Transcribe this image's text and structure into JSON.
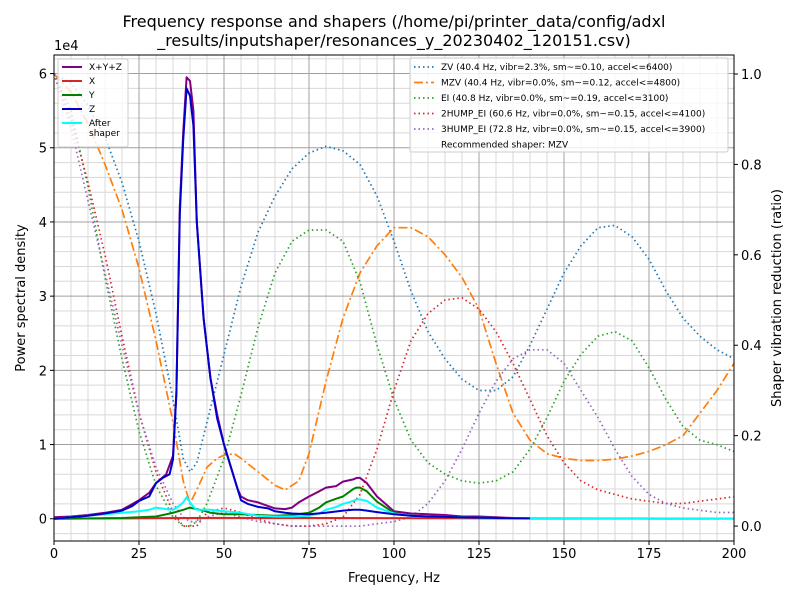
{
  "chart_data": {
    "type": "line",
    "title_line1": "Frequency response and shapers (/home/pi/printer_data/config/adxl",
    "title_line2": "_results/inputshaper/resonances_y_20230402_120151.csv)",
    "xlabel": "Frequency, Hz",
    "ylabel": "Power spectral density",
    "y2label": "Shaper vibration reduction (ratio)",
    "y_offset_label": "1e4",
    "xlim": [
      0,
      200
    ],
    "ylim": [
      -3000,
      62500
    ],
    "y2lim": [
      -0.033,
      1.042
    ],
    "x_ticks": [
      0,
      25,
      50,
      75,
      100,
      125,
      150,
      175,
      200
    ],
    "y_ticks": [
      0,
      10000,
      20000,
      30000,
      40000,
      50000,
      60000
    ],
    "y_tick_labels": [
      "0",
      "1",
      "2",
      "3",
      "4",
      "5",
      "6"
    ],
    "y2_ticks": [
      0,
      0.2,
      0.4,
      0.6,
      0.8,
      1.0
    ],
    "y2_tick_labels": [
      "0.0",
      "0.2",
      "0.4",
      "0.6",
      "0.8",
      "1.0"
    ],
    "grid": true,
    "minor_grid": true,
    "legend_left_position": "top-left",
    "legend_right_position": "top-right",
    "psd_series": [
      {
        "name": "X+Y+Z",
        "color": "#800080",
        "style": "solid",
        "width": 2,
        "x": [
          0,
          5,
          10,
          15,
          20,
          25,
          28,
          30,
          33,
          35,
          36,
          37,
          38,
          39,
          40,
          41,
          42,
          44,
          46,
          48,
          50,
          52,
          54,
          55,
          57,
          60,
          63,
          65,
          68,
          70,
          72,
          75,
          78,
          80,
          83,
          85,
          88,
          89,
          90,
          92,
          95,
          100,
          105,
          110,
          115,
          120,
          125,
          130,
          135
        ],
        "y": [
          200,
          300,
          500,
          800,
          1200,
          2500,
          3500,
          4800,
          6000,
          8500,
          17000,
          42000,
          52000,
          59500,
          59000,
          55000,
          40000,
          27000,
          19000,
          14000,
          10000,
          7000,
          4000,
          3000,
          2500,
          2200,
          1700,
          1400,
          1300,
          1500,
          2200,
          3000,
          3700,
          4200,
          4400,
          5000,
          5300,
          5500,
          5500,
          4800,
          3000,
          1000,
          700,
          600,
          500,
          300,
          300,
          200,
          100
        ]
      },
      {
        "name": "X",
        "color": "#d62728",
        "style": "solid",
        "width": 2,
        "x": [
          0,
          10,
          20,
          30,
          40,
          50,
          60,
          80,
          100,
          120,
          140,
          160,
          180,
          200
        ],
        "y": [
          0,
          30,
          50,
          80,
          100,
          120,
          100,
          100,
          80,
          60,
          40,
          30,
          20,
          20
        ]
      },
      {
        "name": "Y",
        "color": "#008000",
        "style": "solid",
        "width": 2,
        "x": [
          0,
          20,
          30,
          35,
          38,
          40,
          42,
          44,
          46,
          50,
          55,
          60,
          65,
          70,
          75,
          78,
          80,
          83,
          85,
          88,
          89,
          90,
          92,
          95,
          100,
          105,
          110,
          120,
          130,
          140
        ],
        "y": [
          0,
          100,
          300,
          800,
          1200,
          1500,
          1300,
          1100,
          800,
          600,
          600,
          500,
          400,
          500,
          800,
          1500,
          2200,
          2700,
          3000,
          4000,
          4200,
          4200,
          3700,
          2300,
          800,
          400,
          300,
          200,
          100,
          50
        ]
      },
      {
        "name": "Z",
        "color": "#0000cd",
        "style": "solid",
        "width": 2,
        "x": [
          0,
          5,
          10,
          15,
          20,
          23,
          25,
          28,
          30,
          32,
          34,
          35,
          36,
          37,
          38,
          39,
          40,
          41,
          42,
          44,
          46,
          48,
          50,
          52,
          54,
          55,
          57,
          60,
          63,
          65,
          68,
          70,
          75,
          80,
          85,
          88,
          90,
          92,
          95,
          100,
          105,
          110,
          120,
          130,
          140
        ],
        "y": [
          0,
          200,
          400,
          700,
          1100,
          1700,
          2400,
          3000,
          4800,
          5500,
          6000,
          8000,
          17000,
          41000,
          51000,
          58000,
          57000,
          53000,
          40000,
          27000,
          19000,
          13500,
          10000,
          7000,
          4000,
          2500,
          2000,
          1600,
          1400,
          1000,
          800,
          700,
          600,
          800,
          1100,
          1200,
          1200,
          1100,
          900,
          600,
          400,
          300,
          200,
          100,
          50
        ]
      },
      {
        "name": "After\nshaper",
        "color": "#00ffff",
        "style": "solid",
        "width": 2,
        "x": [
          0,
          5,
          10,
          15,
          20,
          25,
          28,
          30,
          33,
          35,
          37,
          38,
          39,
          40,
          41,
          42,
          44,
          46,
          48,
          50,
          55,
          60,
          65,
          70,
          75,
          78,
          80,
          83,
          85,
          88,
          89,
          90,
          92,
          95,
          100,
          105,
          110,
          120,
          130,
          140,
          150,
          160,
          170,
          180,
          190,
          200
        ],
        "y": [
          0,
          200,
          400,
          600,
          800,
          1000,
          1200,
          1500,
          1300,
          1200,
          1800,
          2200,
          2900,
          2200,
          1600,
          1200,
          1200,
          1200,
          1100,
          1000,
          800,
          400,
          300,
          300,
          400,
          700,
          1200,
          1600,
          2000,
          2400,
          2600,
          2600,
          2400,
          1500,
          700,
          400,
          300,
          200,
          100,
          100,
          80,
          70,
          60,
          50,
          40,
          30
        ]
      }
    ],
    "shaper_series": [
      {
        "name": "ZV (40.4 Hz, vibr=2.3%, sm~=0.10, accel<=6400)",
        "color": "#1f77b4",
        "style": "dotted",
        "x": [
          0,
          5,
          10,
          15,
          20,
          25,
          30,
          35,
          38,
          40,
          42,
          45,
          50,
          55,
          60,
          65,
          70,
          75,
          80,
          85,
          90,
          95,
          100,
          105,
          110,
          115,
          120,
          125,
          130,
          135,
          140,
          145,
          150,
          155,
          160,
          165,
          170,
          175,
          180,
          185,
          190,
          195,
          200
        ],
        "y": [
          1.0,
          0.98,
          0.93,
          0.86,
          0.76,
          0.63,
          0.47,
          0.28,
          0.15,
          0.12,
          0.14,
          0.23,
          0.38,
          0.53,
          0.65,
          0.73,
          0.79,
          0.825,
          0.84,
          0.83,
          0.8,
          0.73,
          0.63,
          0.52,
          0.43,
          0.37,
          0.325,
          0.3,
          0.3,
          0.33,
          0.4,
          0.48,
          0.56,
          0.62,
          0.66,
          0.665,
          0.64,
          0.59,
          0.52,
          0.46,
          0.42,
          0.39,
          0.37
        ]
      },
      {
        "name": "MZV (40.4 Hz, vibr=0.0%, sm~=0.12, accel<=4800)",
        "color": "#ff7f0e",
        "style": "dashdot",
        "x": [
          0,
          5,
          10,
          15,
          20,
          25,
          30,
          35,
          38,
          40,
          42,
          45,
          48,
          50,
          53,
          55,
          60,
          65,
          68,
          70,
          72,
          75,
          80,
          85,
          90,
          95,
          100,
          105,
          110,
          115,
          120,
          125,
          130,
          135,
          140,
          145,
          150,
          155,
          160,
          165,
          170,
          175,
          180,
          185,
          190,
          195,
          200
        ],
        "y": [
          1.0,
          0.96,
          0.89,
          0.8,
          0.7,
          0.57,
          0.41,
          0.23,
          0.1,
          0.05,
          0.08,
          0.13,
          0.15,
          0.157,
          0.16,
          0.15,
          0.12,
          0.09,
          0.08,
          0.09,
          0.1,
          0.16,
          0.32,
          0.46,
          0.56,
          0.62,
          0.66,
          0.66,
          0.64,
          0.6,
          0.55,
          0.48,
          0.36,
          0.25,
          0.19,
          0.16,
          0.15,
          0.145,
          0.145,
          0.148,
          0.155,
          0.165,
          0.18,
          0.2,
          0.25,
          0.3,
          0.36
        ]
      },
      {
        "name": "EI (40.8 Hz, vibr=0.0%, sm~=0.19, accel<=3100)",
        "color": "#2ca02c",
        "style": "dotted",
        "x": [
          0,
          5,
          10,
          15,
          20,
          25,
          30,
          35,
          38,
          40,
          42,
          45,
          50,
          55,
          60,
          65,
          70,
          75,
          80,
          85,
          90,
          95,
          100,
          105,
          110,
          115,
          120,
          125,
          130,
          135,
          140,
          145,
          150,
          155,
          160,
          165,
          170,
          175,
          180,
          185,
          190,
          195,
          200
        ],
        "y": [
          1.0,
          0.92,
          0.75,
          0.55,
          0.37,
          0.21,
          0.09,
          0.02,
          0.0,
          0.0,
          0.01,
          0.05,
          0.15,
          0.29,
          0.44,
          0.56,
          0.63,
          0.655,
          0.655,
          0.63,
          0.54,
          0.4,
          0.28,
          0.19,
          0.14,
          0.115,
          0.1,
          0.095,
          0.1,
          0.12,
          0.17,
          0.24,
          0.32,
          0.38,
          0.42,
          0.43,
          0.41,
          0.35,
          0.28,
          0.22,
          0.19,
          0.18,
          0.165
        ]
      },
      {
        "name": "2HUMP_EI (60.6 Hz, vibr=0.0%, sm~=0.15, accel<=4100)",
        "color": "#d62728",
        "style": "dotted",
        "x": [
          0,
          5,
          10,
          15,
          20,
          25,
          30,
          35,
          38,
          40,
          42,
          45,
          50,
          55,
          60,
          65,
          70,
          75,
          80,
          85,
          90,
          95,
          100,
          105,
          110,
          115,
          120,
          125,
          130,
          135,
          140,
          145,
          150,
          155,
          160,
          165,
          170,
          175,
          180,
          185,
          190,
          195,
          200
        ],
        "y": [
          1.0,
          0.9,
          0.76,
          0.6,
          0.42,
          0.25,
          0.12,
          0.03,
          0.0,
          0.0,
          0.0,
          0.03,
          0.04,
          0.03,
          0.015,
          0.005,
          0.0,
          0.0,
          0.005,
          0.02,
          0.07,
          0.17,
          0.3,
          0.41,
          0.47,
          0.5,
          0.505,
          0.48,
          0.43,
          0.36,
          0.28,
          0.2,
          0.14,
          0.1,
          0.08,
          0.07,
          0.06,
          0.055,
          0.05,
          0.05,
          0.055,
          0.06,
          0.065
        ]
      },
      {
        "name": "3HUMP_EI (72.8 Hz, vibr=0.0%, sm~=0.15, accel<=3900)",
        "color": "#9467bd",
        "style": "dotted",
        "x": [
          0,
          5,
          10,
          15,
          20,
          25,
          30,
          35,
          38,
          40,
          42,
          45,
          50,
          55,
          60,
          65,
          70,
          75,
          80,
          85,
          90,
          95,
          100,
          105,
          110,
          115,
          120,
          125,
          130,
          135,
          140,
          145,
          150,
          155,
          160,
          165,
          170,
          175,
          180,
          185,
          190,
          195,
          200
        ],
        "y": [
          1.0,
          0.88,
          0.72,
          0.56,
          0.4,
          0.25,
          0.13,
          0.05,
          0.02,
          0.01,
          0.01,
          0.02,
          0.03,
          0.02,
          0.01,
          0.005,
          0.0,
          0.0,
          0.0,
          0.0,
          0.0,
          0.005,
          0.01,
          0.02,
          0.05,
          0.1,
          0.17,
          0.25,
          0.32,
          0.37,
          0.39,
          0.39,
          0.36,
          0.3,
          0.24,
          0.17,
          0.11,
          0.07,
          0.05,
          0.04,
          0.035,
          0.03,
          0.03
        ]
      }
    ],
    "recommended_text": "Recommended shaper: MZV"
  }
}
